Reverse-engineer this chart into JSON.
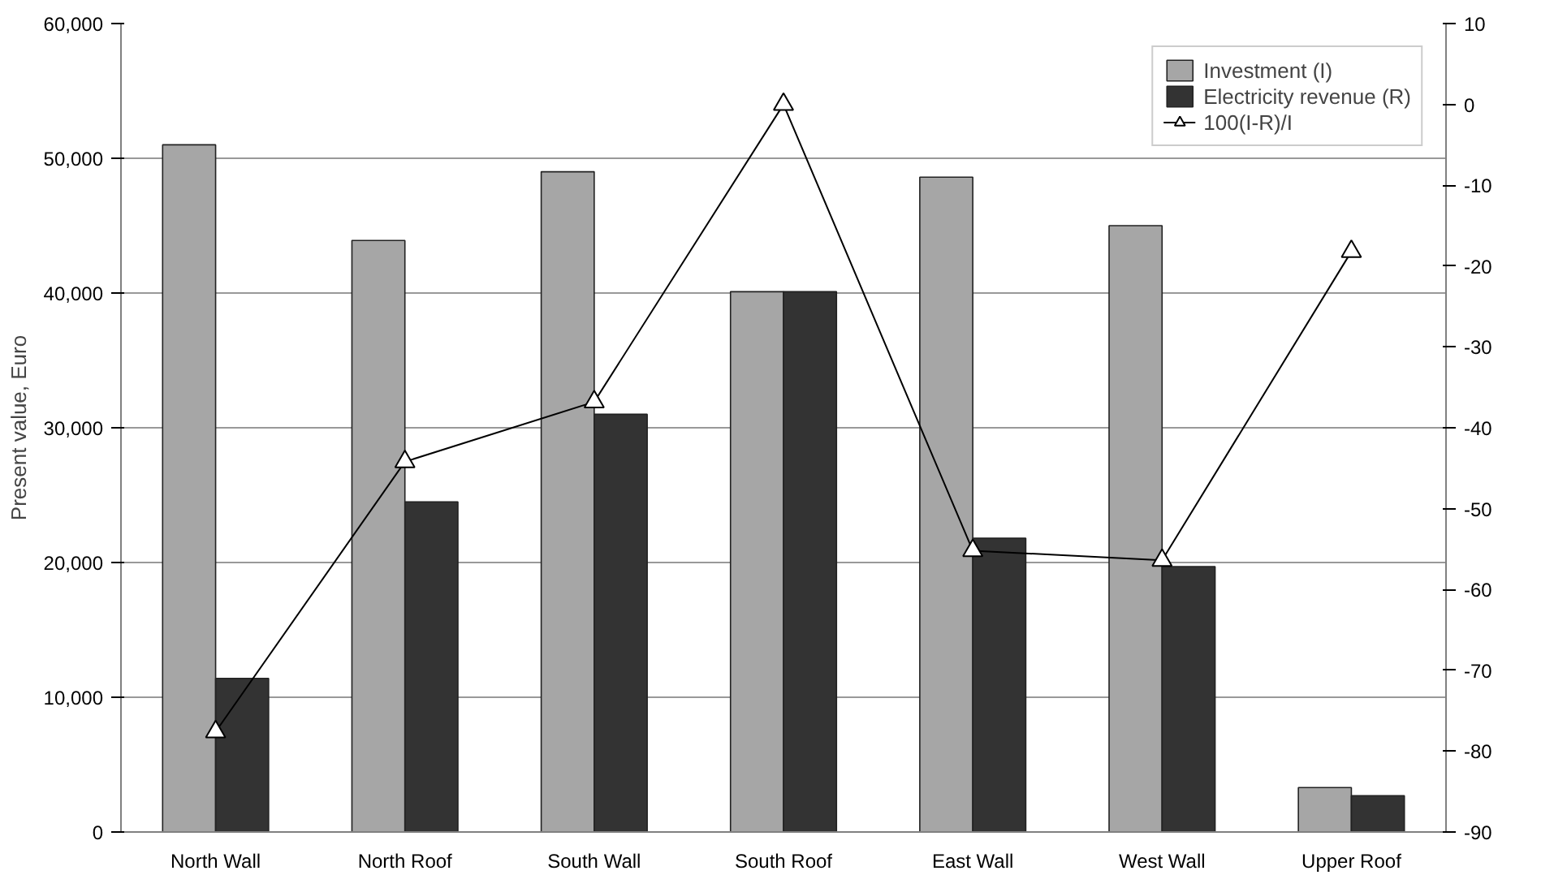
{
  "chart_data": {
    "type": "bar",
    "ylabel": "Present value, Euro",
    "categories": [
      "North Wall",
      "North Roof",
      "South Wall",
      "South Roof",
      "East Wall",
      "West Wall",
      "Upper Roof"
    ],
    "series": [
      {
        "name": "Investment (I)",
        "color": "#a6a6a6",
        "values": [
          51000,
          43900,
          49000,
          40100,
          48600,
          45000,
          3300
        ]
      },
      {
        "name": "Electricity revenue (R)",
        "color": "#333333",
        "values": [
          11400,
          24500,
          31000,
          40100,
          21800,
          19700,
          2700
        ]
      },
      {
        "name": "100(I-R)/I",
        "type": "line",
        "axis": "y2",
        "color": "#000000",
        "marker": "triangle",
        "values": [
          -77.6,
          -44.2,
          -36.8,
          0,
          -55.2,
          -56.4,
          -18.2
        ]
      }
    ],
    "ylim": [
      0,
      60000
    ],
    "yticks": [
      {
        "value": 0,
        "label": "0"
      },
      {
        "value": 10000,
        "label": "10,000"
      },
      {
        "value": 20000,
        "label": "20,000"
      },
      {
        "value": 30000,
        "label": "30,000"
      },
      {
        "value": 40000,
        "label": "40,000"
      },
      {
        "value": 50000,
        "label": "50,000"
      },
      {
        "value": 60000,
        "label": "60,000"
      }
    ],
    "y2lim": [
      -90,
      10
    ],
    "y2ticks": [
      -90,
      -80,
      -70,
      -60,
      -50,
      -40,
      -30,
      -20,
      -10,
      0,
      10
    ],
    "grid": "y",
    "legend": "top right"
  }
}
